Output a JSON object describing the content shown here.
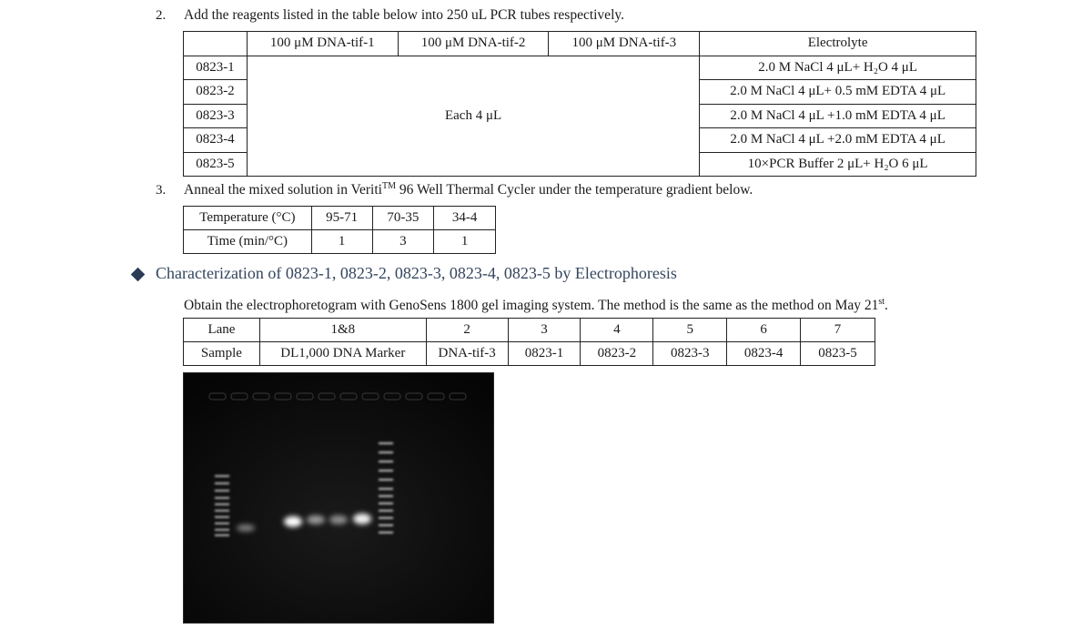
{
  "step2": {
    "number": "2.",
    "text": "Add the reagents listed in the table below into 250 uL PCR tubes respectively."
  },
  "reagent_table": {
    "headers": [
      "",
      "100 μM DNA-tif-1",
      "100 μM DNA-tif-2",
      "100 μM DNA-tif-3",
      "Electrolyte"
    ],
    "merged_value": "Each 4 μL",
    "rows": [
      {
        "id": "0823-1",
        "electrolyte": "2.0 M NaCl 4 μL+ H₂O 4 μL"
      },
      {
        "id": "0823-2",
        "electrolyte": "2.0 M NaCl 4 μL+ 0.5 mM EDTA 4 μL"
      },
      {
        "id": "0823-3",
        "electrolyte": "2.0 M NaCl 4 μL +1.0 mM EDTA 4 μL"
      },
      {
        "id": "0823-4",
        "electrolyte": "2.0 M NaCl 4 μL +2.0 mM EDTA 4 μL"
      },
      {
        "id": "0823-5",
        "electrolyte": "10×PCR Buffer 2 μL+ H₂O 6 μL"
      }
    ]
  },
  "step3": {
    "number": "3.",
    "text_before": "Anneal the mixed solution in Veriti",
    "superscript": "TM",
    "text_after": " 96 Well Thermal Cycler under the temperature gradient below."
  },
  "temp_table": {
    "rows": [
      [
        "Temperature (°C)",
        "95-71",
        "70-35",
        "34-4"
      ],
      [
        "Time (min/°C)",
        "1",
        "3",
        "1"
      ]
    ]
  },
  "section": {
    "title": "Characterization of 0823-1, 0823-2, 0823-3, 0823-4, 0823-5 by Electrophoresis",
    "bullet_color": "#2b3a55"
  },
  "gel_intro": {
    "text": "Obtain the electrophoretogram with GenoSens 1800 gel imaging system. The method is the same as the method on May 21",
    "superscript": "st",
    "suffix": "."
  },
  "lane_table": {
    "lanes": [
      "Lane",
      "1&8",
      "2",
      "3",
      "4",
      "5",
      "6",
      "7"
    ],
    "samples": [
      "Sample",
      "DL1,000 DNA Marker",
      "DNA-tif-3",
      "0823-1",
      "0823-2",
      "0823-3",
      "0823-4",
      "0823-5"
    ]
  }
}
